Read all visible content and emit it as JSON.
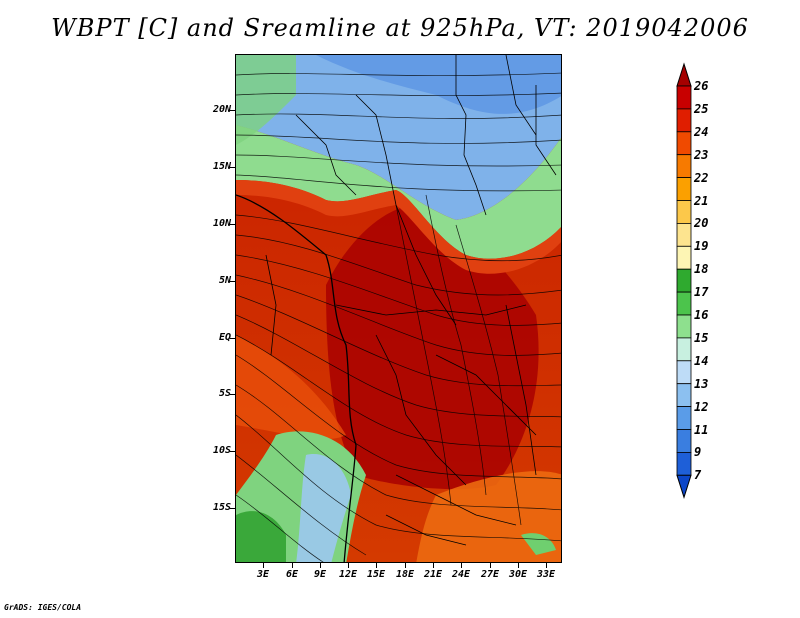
{
  "title": "WBPT [C] and Sreamline at 925hPa, VT: 2019042006",
  "footer": "GrADS: IGES/COLA",
  "map": {
    "lat_ticks": [
      "20N",
      "15N",
      "10N",
      "5N",
      "EQ",
      "5S",
      "10S",
      "15S"
    ],
    "lon_ticks": [
      "3E",
      "6E",
      "9E",
      "12E",
      "15E",
      "18E",
      "21E",
      "24E",
      "27E",
      "30E",
      "33E"
    ]
  },
  "colorbar": {
    "levels": [
      "26",
      "25",
      "24",
      "23",
      "22",
      "21",
      "20",
      "19",
      "18",
      "17",
      "16",
      "15",
      "14",
      "13",
      "12",
      "11",
      "9",
      "7"
    ],
    "colors": [
      "#a50000",
      "#c80000",
      "#e01e00",
      "#f04a00",
      "#f77a00",
      "#fba000",
      "#fcc84a",
      "#fde48f",
      "#fdf5b4",
      "#2faa2f",
      "#4cc44c",
      "#8ee08e",
      "#c8f0e0",
      "#bedcf7",
      "#8cc0f0",
      "#5a9ce8",
      "#3a7ee0",
      "#1e5fd8",
      "#0c46c8"
    ]
  }
}
